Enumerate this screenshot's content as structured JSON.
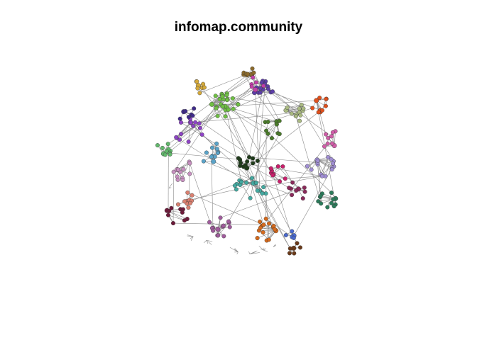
{
  "title": "infomap.community",
  "colors": {
    "edge": "#8c8c8c",
    "node_stroke": "#333333",
    "communities": [
      "#8b6a2c",
      "#d4a93a",
      "#6fbf44",
      "#5c3ea6",
      "#c23fa8",
      "#e0501c",
      "#a9b981",
      "#8e43c6",
      "#62b86c",
      "#3f2b8a",
      "#4a7a2a",
      "#c81f6b",
      "#5aa3c8",
      "#c790c0",
      "#d98070",
      "#44a9a0",
      "#a08ed3",
      "#1f3b1a",
      "#2b7a5a",
      "#d56a1d",
      "#8a2a5a",
      "#a05c9c",
      "#6a3a1a",
      "#4a6ad0",
      "#d05ea8",
      "#6d1a3a"
    ]
  }
}
